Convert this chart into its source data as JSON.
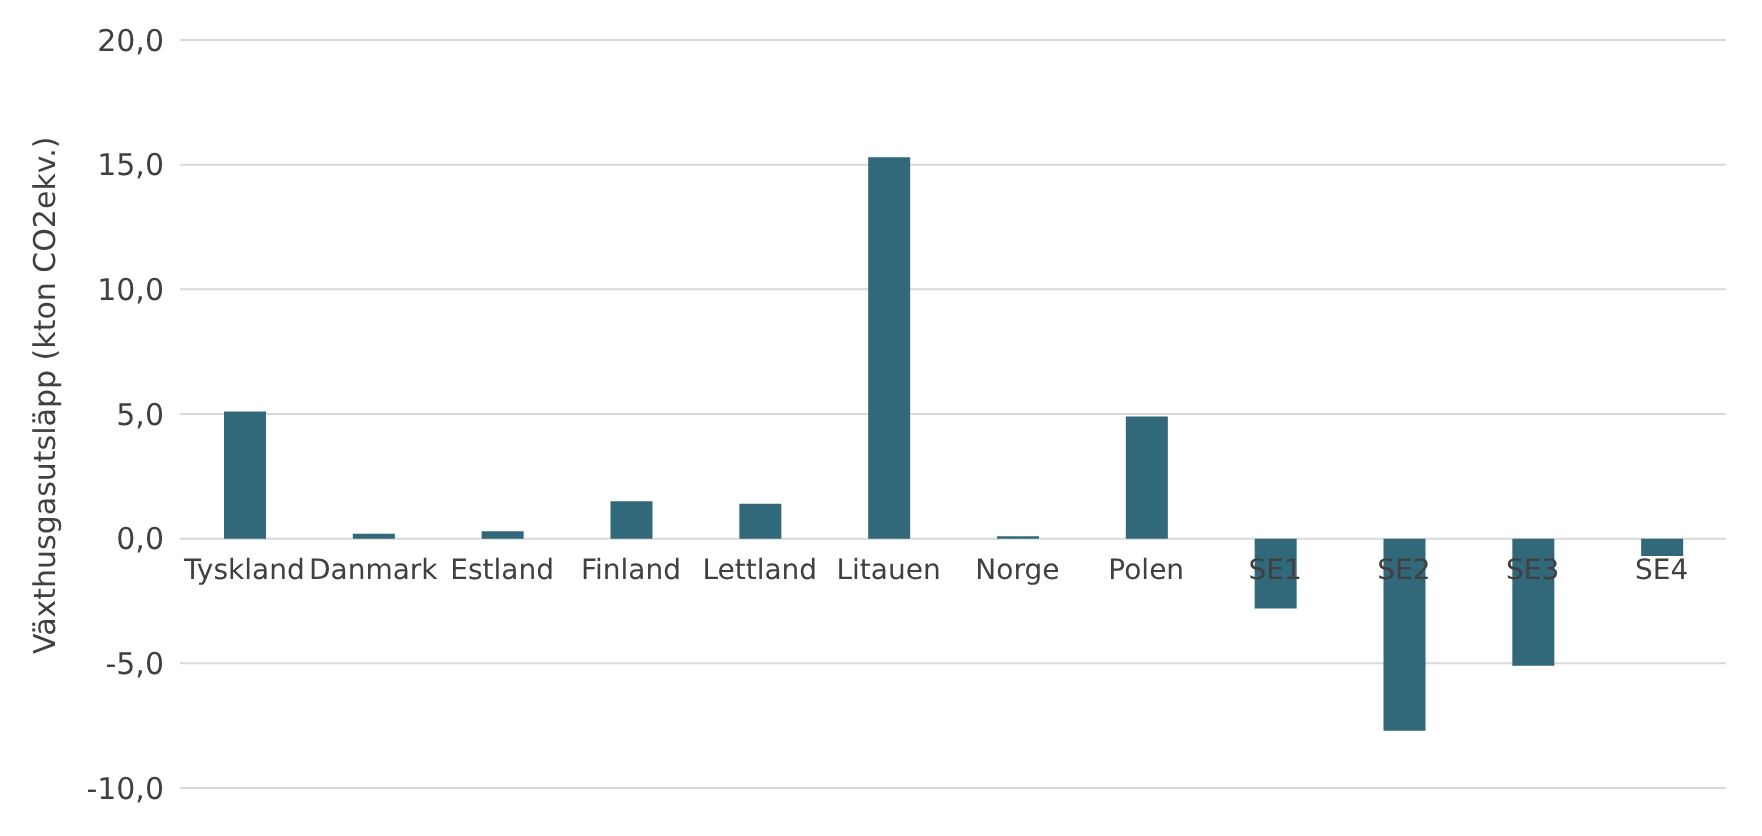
{
  "chart_data": {
    "type": "bar",
    "ylabel": "Växthusgasutsläpp (kton CO2ekv.)",
    "categories": [
      "Tyskland",
      "Danmark",
      "Estland",
      "Finland",
      "Lettland",
      "Litauen",
      "Norge",
      "Polen",
      "SE1",
      "SE2",
      "SE3",
      "SE4"
    ],
    "values": [
      5.1,
      0.2,
      0.3,
      1.5,
      1.4,
      15.3,
      0.1,
      4.9,
      -2.8,
      -7.7,
      -5.1,
      -0.7
    ],
    "color": "#31687a",
    "ylim": [
      -10,
      20
    ],
    "yticks": [
      {
        "value": -10,
        "label": "-10,0"
      },
      {
        "value": -5,
        "label": "-5,0"
      },
      {
        "value": 0,
        "label": "0,0"
      },
      {
        "value": 5,
        "label": "5,0"
      },
      {
        "value": 10,
        "label": "10,0"
      },
      {
        "value": 15,
        "label": "15,0"
      },
      {
        "value": 20,
        "label": "20,0"
      }
    ],
    "grid": "y",
    "legend": false
  }
}
